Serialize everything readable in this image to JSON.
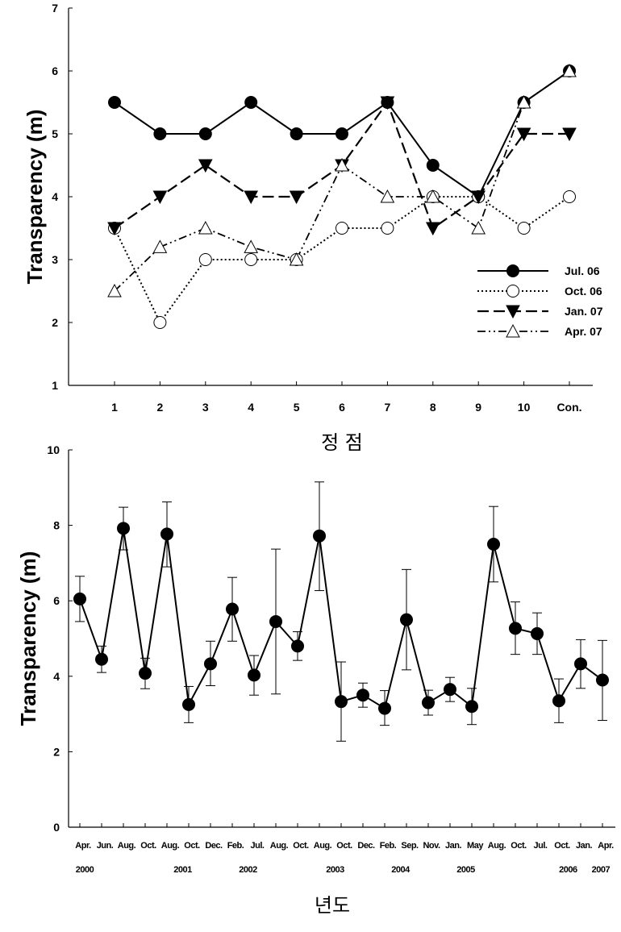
{
  "chart_data": [
    {
      "type": "line",
      "title": "",
      "xlabel": "정 점",
      "ylabel": "Transparency (m)",
      "categories": [
        "1",
        "2",
        "3",
        "4",
        "5",
        "6",
        "7",
        "8",
        "9",
        "10",
        "Con."
      ],
      "ylim": [
        1,
        7
      ],
      "yticks": [
        "1",
        "2",
        "3",
        "4",
        "5",
        "6",
        "7"
      ],
      "legend_position": "lower-right",
      "series": [
        {
          "name": "Jul. 06",
          "marker": "filled-circle",
          "line": "solid",
          "values": [
            5.5,
            5.0,
            5.0,
            5.5,
            5.0,
            5.0,
            5.5,
            4.5,
            4.0,
            5.5,
            6.0
          ]
        },
        {
          "name": "Oct. 06",
          "marker": "open-circle",
          "line": "dotted",
          "values": [
            3.5,
            2.0,
            3.0,
            3.0,
            3.0,
            3.5,
            3.5,
            4.0,
            4.0,
            3.5,
            4.0
          ]
        },
        {
          "name": "Jan. 07",
          "marker": "filled-triangle-down",
          "line": "dashed",
          "values": [
            3.5,
            4.0,
            4.5,
            4.0,
            4.0,
            4.5,
            5.5,
            3.5,
            4.0,
            5.0,
            5.0
          ]
        },
        {
          "name": "Apr. 07",
          "marker": "open-triangle-up",
          "line": "dash-dot",
          "values": [
            2.5,
            3.2,
            3.5,
            3.2,
            3.0,
            4.5,
            4.0,
            4.0,
            3.5,
            5.5,
            6.0
          ]
        }
      ]
    },
    {
      "type": "line",
      "title": "",
      "xlabel": "년도",
      "ylabel": "Transparency (m)",
      "ylim": [
        0,
        10
      ],
      "yticks": [
        "0",
        "2",
        "4",
        "6",
        "8",
        "10"
      ],
      "categories": [
        "Apr.",
        "Jun.",
        "Aug.",
        "Oct.",
        "Aug.",
        "Oct.",
        "Dec.",
        "Feb.",
        "Jul.",
        "Aug.",
        "Oct.",
        "Aug.",
        "Oct.",
        "Dec.",
        "Feb.",
        "Sep.",
        "Nov.",
        "Jan.",
        "May",
        "Aug.",
        "Oct.",
        "Jul.",
        "Oct.",
        "Jan.",
        "Apr."
      ],
      "year_labels": [
        {
          "label": "2000",
          "index": 0
        },
        {
          "label": "2001",
          "index": 4.5
        },
        {
          "label": "2002",
          "index": 7.5
        },
        {
          "label": "2003",
          "index": 11.5
        },
        {
          "label": "2004",
          "index": 14.5
        },
        {
          "label": "2005",
          "index": 17.5
        },
        {
          "label": "2006",
          "index": 22.2
        },
        {
          "label": "2007",
          "index": 23.7
        }
      ],
      "series": [
        {
          "name": "",
          "marker": "filled-circle",
          "line": "solid",
          "values": [
            6.05,
            4.45,
            7.92,
            4.08,
            7.77,
            3.25,
            4.33,
            5.78,
            4.03,
            5.45,
            4.8,
            7.72,
            3.33,
            3.5,
            3.15,
            5.5,
            3.3,
            3.65,
            3.2,
            7.5,
            5.27,
            5.13,
            3.35,
            4.33,
            3.9
          ],
          "err_low": [
            5.45,
            4.1,
            7.35,
            3.67,
            6.9,
            2.77,
            3.75,
            4.93,
            3.5,
            3.53,
            4.42,
            6.27,
            2.28,
            3.18,
            2.7,
            4.17,
            2.97,
            3.33,
            2.72,
            6.5,
            4.58,
            4.58,
            2.77,
            3.68,
            2.83
          ],
          "err_high": [
            6.65,
            4.8,
            8.48,
            4.48,
            8.62,
            3.73,
            4.93,
            6.62,
            4.55,
            7.37,
            5.18,
            9.15,
            4.38,
            3.82,
            3.62,
            6.83,
            3.63,
            3.97,
            3.68,
            8.5,
            5.97,
            5.68,
            3.93,
            4.97,
            4.95
          ]
        }
      ]
    }
  ]
}
